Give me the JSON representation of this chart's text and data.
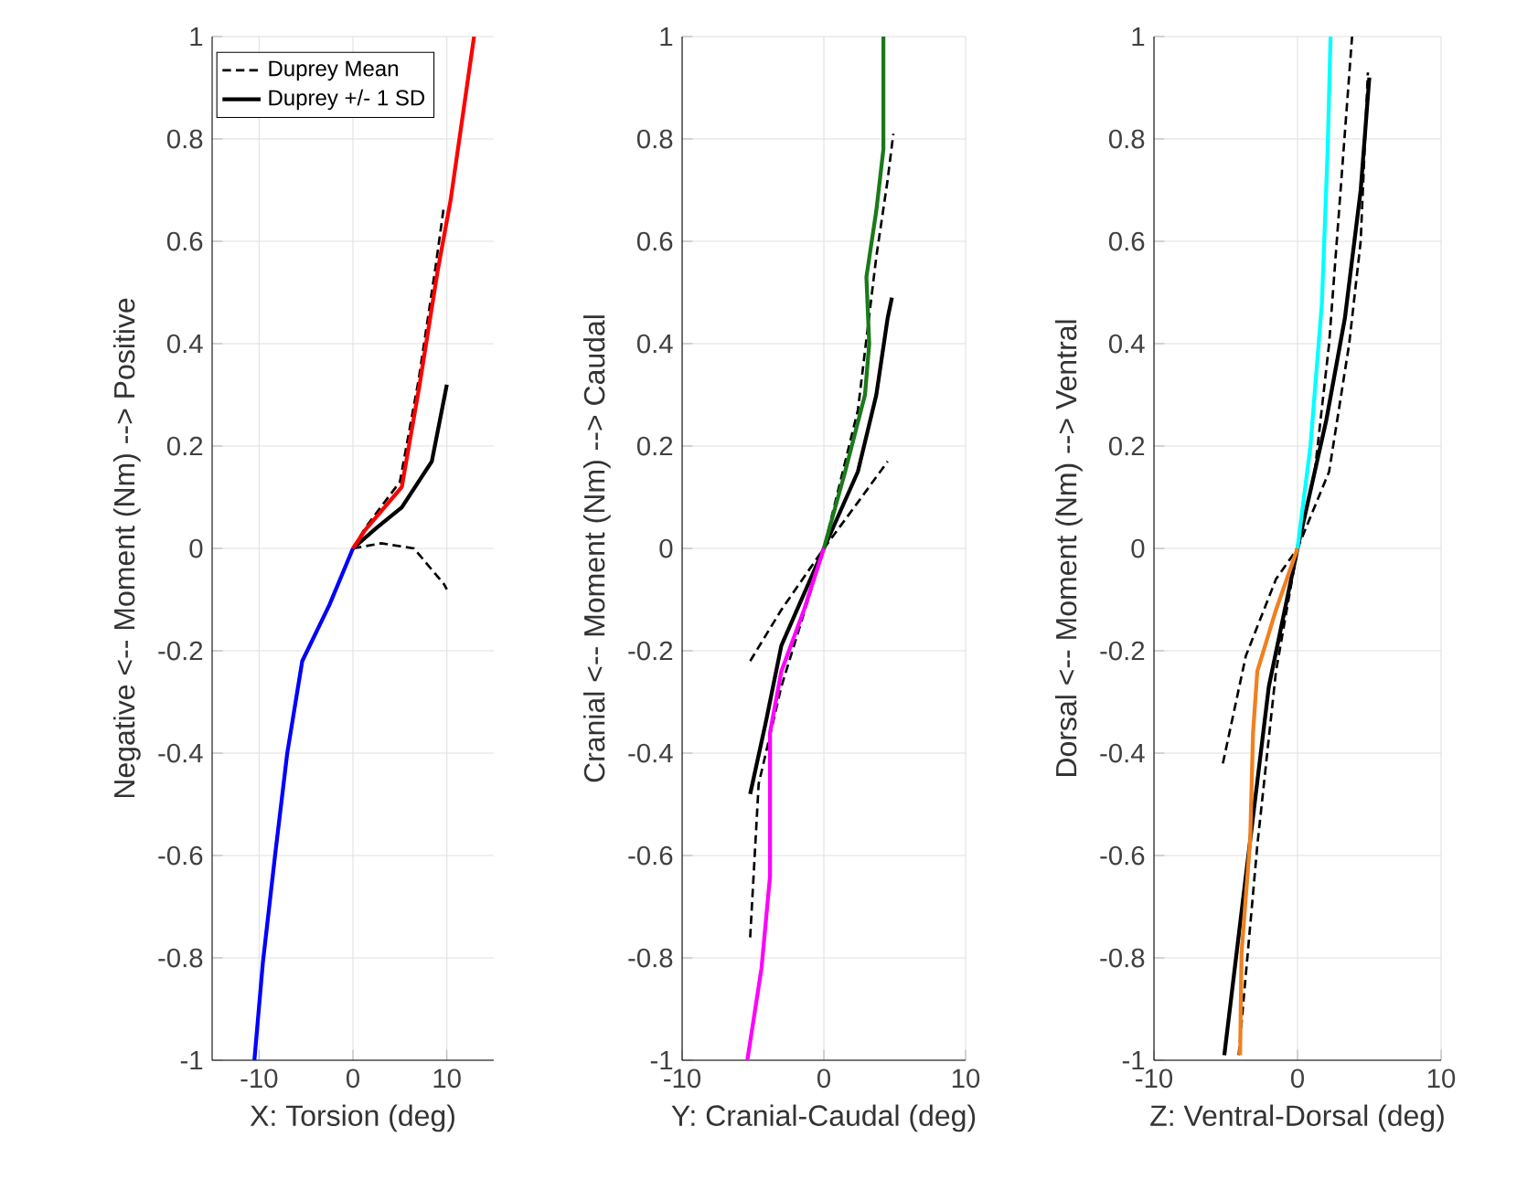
{
  "chart_data": [
    {
      "type": "line",
      "xlabel": "X: Torsion (deg)",
      "ylabel": "Negative <-- Moment (Nm) --> Positive",
      "xlim": [
        -15,
        15
      ],
      "xticks": [
        -10,
        0,
        10
      ],
      "ylim": [
        -1,
        1
      ],
      "yticks": [
        -1,
        -0.8,
        -0.6,
        -0.4,
        -0.2,
        0,
        0.2,
        0.4,
        0.6,
        0.8,
        1
      ],
      "grid": true,
      "legend": "top left",
      "series": [
        {
          "name": "Duprey Mean",
          "color": "#000000",
          "line_style": "dashed",
          "x": [
            0,
            1.3,
            5.0,
            7.0,
            8.8,
            9.7
          ],
          "values": [
            0,
            0.04,
            0.13,
            0.33,
            0.55,
            0.67
          ]
        },
        {
          "name": "Duprey +/- 1 SD",
          "color": "#000000",
          "line_style": "solid",
          "x": [
            0,
            2.5,
            5.2,
            8.4,
            10
          ],
          "values": [
            0,
            0.04,
            0.08,
            0.17,
            0.32
          ]
        },
        {
          "color": "#000000",
          "line_style": "dashed",
          "x": [
            0,
            3,
            6.5,
            9.7,
            10
          ],
          "values": [
            0,
            0.01,
            0,
            -0.07,
            -0.08
          ]
        },
        {
          "color": "#ff0000",
          "line_style": "solid",
          "x": [
            0,
            1.3,
            5.2,
            7.1,
            9,
            10.4,
            12.9
          ],
          "values": [
            0,
            0.036,
            0.12,
            0.32,
            0.54,
            0.68,
            1
          ]
        },
        {
          "color": "#0000ff",
          "line_style": "solid",
          "x": [
            0,
            -2.5,
            -5.4,
            -7,
            -8.3,
            -9.6,
            -10.5
          ],
          "values": [
            0,
            -0.11,
            -0.22,
            -0.4,
            -0.6,
            -0.81,
            -1
          ]
        }
      ]
    },
    {
      "type": "line",
      "xlabel": "Y: Cranial-Caudal (deg)",
      "ylabel": "Cranial <-- Moment (Nm) --> Caudal",
      "xlim": [
        -10,
        10
      ],
      "xticks": [
        -10,
        0,
        10
      ],
      "ylim": [
        -1,
        1
      ],
      "yticks": [
        -1,
        -0.8,
        -0.6,
        -0.4,
        -0.2,
        0,
        0.2,
        0.4,
        0.6,
        0.8,
        1
      ],
      "grid": true,
      "series": [
        {
          "color": "#000000",
          "line_style": "solid",
          "x": [
            -5.2,
            -4.1,
            -3,
            0,
            2.4,
            3.7,
            4.5,
            4.8
          ],
          "values": [
            -0.48,
            -0.34,
            -0.19,
            0,
            0.15,
            0.3,
            0.45,
            0.49
          ]
        },
        {
          "color": "#000000",
          "line_style": "dashed",
          "x": [
            -5.2,
            -3,
            0,
            2.4,
            4.5
          ],
          "values": [
            -0.22,
            -0.12,
            0,
            0.09,
            0.17
          ]
        },
        {
          "color": "#000000",
          "line_style": "dashed",
          "x": [
            -5.2,
            -4.6,
            -3,
            0,
            2.4,
            3.7,
            4.5,
            4.9
          ],
          "values": [
            -0.76,
            -0.46,
            -0.27,
            0,
            0.27,
            0.57,
            0.72,
            0.81
          ]
        },
        {
          "color": "#1a7a1a",
          "line_style": "solid",
          "x": [
            0,
            1.5,
            2.9,
            3.2,
            3,
            3.7,
            4.2,
            4.2
          ],
          "values": [
            0,
            0.15,
            0.3,
            0.4,
            0.53,
            0.66,
            0.78,
            1
          ]
        },
        {
          "color": "#ff00ff",
          "line_style": "solid",
          "x": [
            0,
            -1.4,
            -3,
            -3.8,
            -3.8,
            -4.4,
            -5.4
          ],
          "values": [
            0,
            -0.12,
            -0.24,
            -0.36,
            -0.64,
            -0.82,
            -1
          ]
        }
      ]
    },
    {
      "type": "line",
      "xlabel": "Z: Ventral-Dorsal (deg)",
      "ylabel": "Dorsal <-- Moment (Nm) --> Ventral",
      "xlim": [
        -10,
        10
      ],
      "xticks": [
        -10,
        0,
        10
      ],
      "ylim": [
        -1,
        1
      ],
      "yticks": [
        -1,
        -0.8,
        -0.6,
        -0.4,
        -0.2,
        0,
        0.2,
        0.4,
        0.6,
        0.8,
        1
      ],
      "grid": true,
      "series": [
        {
          "color": "#000000",
          "line_style": "solid",
          "x": [
            -5.1,
            -3.6,
            -2,
            0,
            2,
            3.3,
            4.4,
            5
          ],
          "values": [
            -0.99,
            -0.64,
            -0.27,
            0,
            0.25,
            0.45,
            0.7,
            0.92
          ]
        },
        {
          "color": "#000000",
          "line_style": "dashed",
          "x": [
            -5.2,
            -3.6,
            -1.5,
            0,
            1.2,
            2.2,
            3,
            3.8
          ],
          "values": [
            -0.42,
            -0.21,
            -0.06,
            0,
            0.15,
            0.4,
            0.7,
            1
          ]
        },
        {
          "color": "#000000",
          "line_style": "dashed",
          "x": [
            -4.1,
            -2.8,
            -1.5,
            0,
            2.2,
            3.6,
            4.4,
            4.9
          ],
          "values": [
            -0.99,
            -0.58,
            -0.24,
            0,
            0.15,
            0.4,
            0.6,
            0.93
          ]
        },
        {
          "color": "#00ffff",
          "line_style": "solid",
          "x": [
            0,
            0.9,
            1.7,
            2.1,
            2.3
          ],
          "values": [
            0,
            0.2,
            0.48,
            0.78,
            1
          ]
        },
        {
          "color": "#f08020",
          "line_style": "solid",
          "x": [
            0,
            -1.5,
            -2.8,
            -3.1,
            -3.3,
            -3.9,
            -4
          ],
          "values": [
            0,
            -0.12,
            -0.24,
            -0.36,
            -0.57,
            -0.79,
            -0.99
          ]
        }
      ]
    }
  ]
}
